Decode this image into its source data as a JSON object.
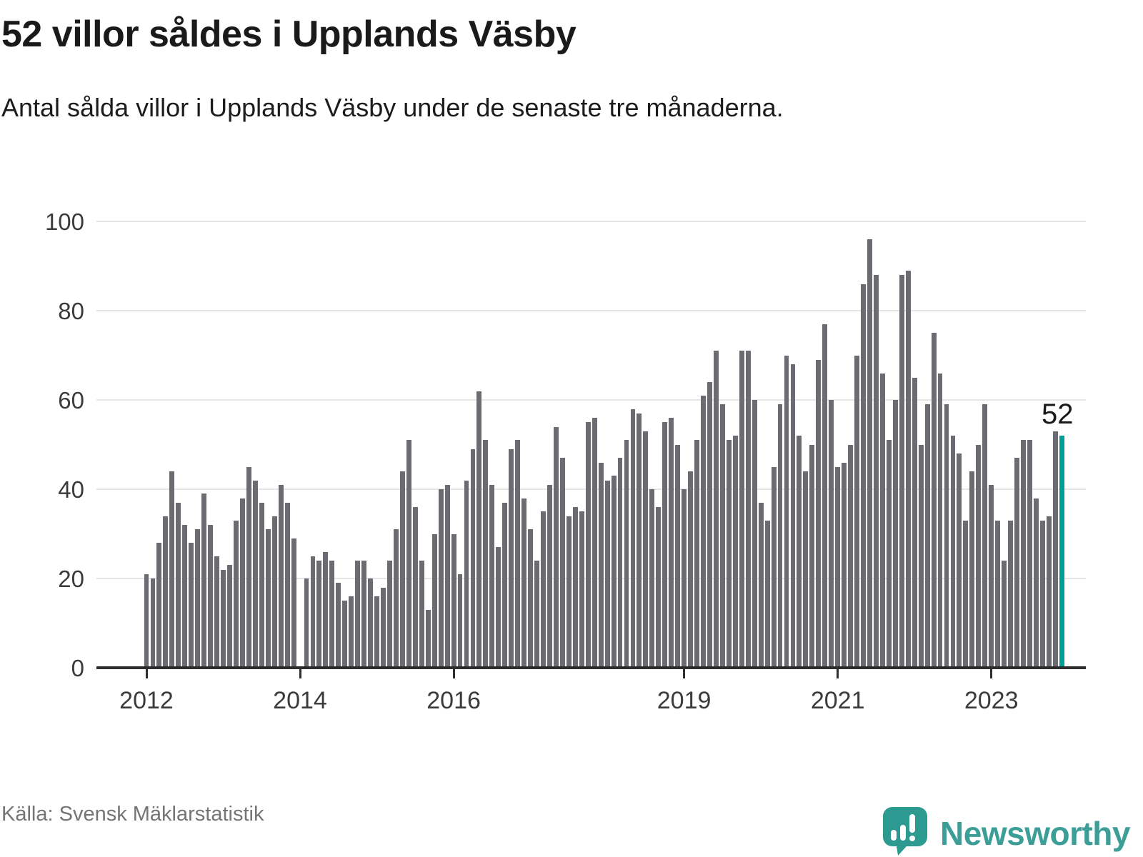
{
  "title": "52 villor såldes i Upplands Väsby",
  "subtitle": "Antal sålda villor i Upplands Väsby under de senaste tre månaderna.",
  "source": "Källa: Svensk Mäklarstatistik",
  "brand": {
    "name": "Newsworthy",
    "logo_icon": "speech-bubble-bar-chart-icon"
  },
  "annotation": {
    "last_value_label": "52"
  },
  "colors": {
    "bar": "#6c6b71",
    "highlight": "#009e97",
    "grid": "#e6e6e6",
    "axis": "#2e2e2e",
    "title_text": "#1a1a1a",
    "tick_text": "#3b3b3b",
    "muted_text": "#757575",
    "brand": "#3c9e97"
  },
  "chart_data": {
    "type": "bar",
    "title": "52 villor såldes i Upplands Väsby",
    "xlabel": "",
    "ylabel": "",
    "ylim": [
      0,
      100
    ],
    "grid": "horizontal",
    "start_month": "2012-01",
    "end_month": "2023-12",
    "note": "one bar per month; null = missing month (2014-01); last bar highlighted teal with data label 52",
    "y_ticks": [
      0,
      20,
      40,
      60,
      80,
      100
    ],
    "x_ticks": [
      {
        "label": "2012",
        "slot": 0
      },
      {
        "label": "2014",
        "slot": 24
      },
      {
        "label": "2016",
        "slot": 48
      },
      {
        "label": "2019",
        "slot": 84
      },
      {
        "label": "2021",
        "slot": 108
      },
      {
        "label": "2023",
        "slot": 132
      }
    ],
    "values": [
      21,
      20,
      28,
      34,
      44,
      37,
      32,
      28,
      31,
      39,
      32,
      25,
      22,
      23,
      33,
      38,
      45,
      42,
      37,
      31,
      34,
      41,
      37,
      29,
      null,
      20,
      25,
      24,
      26,
      24,
      19,
      15,
      16,
      24,
      24,
      20,
      16,
      18,
      24,
      31,
      44,
      51,
      36,
      24,
      13,
      30,
      40,
      41,
      30,
      21,
      42,
      49,
      62,
      51,
      41,
      27,
      37,
      49,
      51,
      38,
      31,
      24,
      35,
      41,
      54,
      47,
      34,
      36,
      35,
      55,
      56,
      46,
      42,
      43,
      47,
      51,
      58,
      57,
      53,
      40,
      36,
      55,
      56,
      50,
      40,
      44,
      51,
      61,
      64,
      71,
      59,
      51,
      52,
      71,
      71,
      60,
      37,
      33,
      45,
      59,
      70,
      68,
      52,
      44,
      50,
      69,
      77,
      60,
      45,
      46,
      50,
      70,
      86,
      96,
      88,
      66,
      51,
      60,
      88,
      89,
      65,
      50,
      59,
      75,
      66,
      59,
      52,
      48,
      33,
      44,
      50,
      59,
      41,
      33,
      24,
      33,
      47,
      51,
      51,
      38,
      33,
      34,
      53,
      52
    ]
  }
}
